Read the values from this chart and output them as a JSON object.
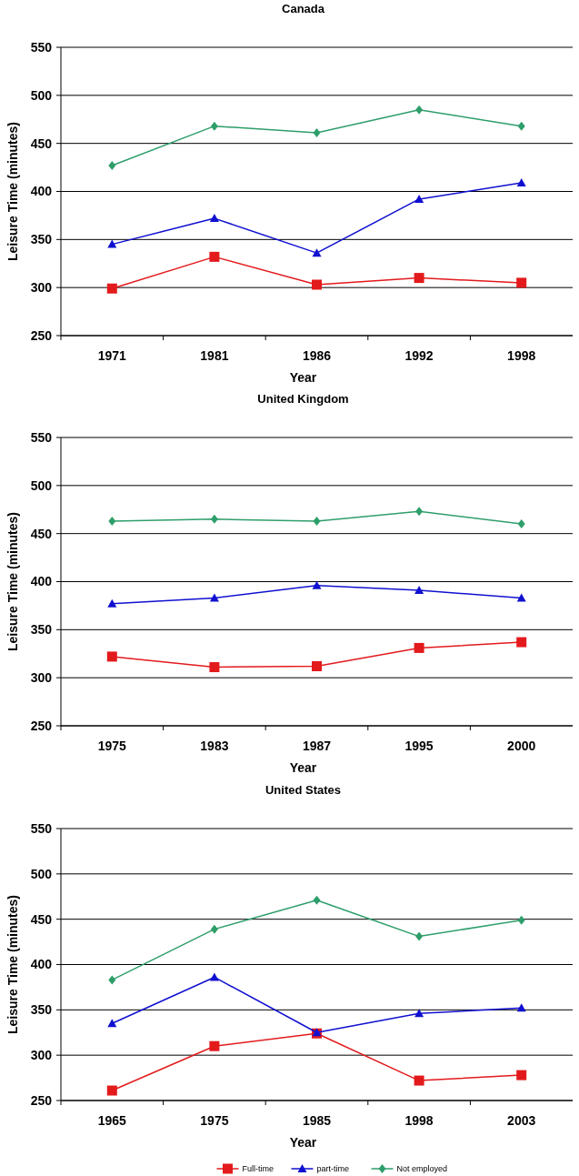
{
  "chart_data": [
    {
      "type": "line",
      "title": "Canada",
      "xlabel": "Year",
      "ylabel": "Leisure Time (minutes)",
      "categories": [
        "1971",
        "1981",
        "1986",
        "1992",
        "1998"
      ],
      "ylim": [
        250,
        550
      ],
      "yticks": [
        250,
        300,
        350,
        400,
        450,
        500,
        550
      ],
      "grid": "y",
      "series": [
        {
          "color": "#e31a1c",
          "marker": "square",
          "values": [
            299,
            332,
            303,
            310,
            305
          ]
        },
        {
          "color": "#1010d0",
          "marker": "triangle",
          "values": [
            345,
            372,
            336,
            392,
            409
          ]
        },
        {
          "color": "#2e9e6a",
          "marker": "diamond",
          "values": [
            427,
            468,
            461,
            485,
            468
          ]
        }
      ]
    },
    {
      "type": "line",
      "title": "United Kingdom",
      "xlabel": "Year",
      "ylabel": "Leisure Time (minutes)",
      "categories": [
        "1975",
        "1983",
        "1987",
        "1995",
        "2000"
      ],
      "ylim": [
        250,
        550
      ],
      "yticks": [
        250,
        300,
        350,
        400,
        450,
        500,
        550
      ],
      "grid": "y",
      "series": [
        {
          "color": "#e31a1c",
          "marker": "square",
          "values": [
            322,
            311,
            312,
            331,
            337
          ]
        },
        {
          "color": "#1010d0",
          "marker": "triangle",
          "values": [
            377,
            383,
            396,
            391,
            383
          ]
        },
        {
          "color": "#2e9e6a",
          "marker": "diamond",
          "values": [
            463,
            465,
            463,
            473,
            460
          ]
        }
      ]
    },
    {
      "type": "line",
      "title": "United States",
      "xlabel": "Year",
      "ylabel": "Leisure Time (minutes)",
      "categories": [
        "1965",
        "1975",
        "1985",
        "1998",
        "2003"
      ],
      "ylim": [
        250,
        550
      ],
      "yticks": [
        250,
        300,
        350,
        400,
        450,
        500,
        550
      ],
      "grid": "y",
      "legend": "bottom",
      "series": [
        {
          "name": "Full-time",
          "color": "#e31a1c",
          "marker": "square",
          "values": [
            261,
            310,
            324,
            272,
            278
          ]
        },
        {
          "name": "part-time",
          "color": "#1010d0",
          "marker": "triangle",
          "values": [
            335,
            386,
            325,
            346,
            352
          ]
        },
        {
          "name": "Not employed",
          "color": "#2e9e6a",
          "marker": "diamond",
          "values": [
            383,
            439,
            471,
            431,
            449
          ]
        }
      ]
    }
  ]
}
